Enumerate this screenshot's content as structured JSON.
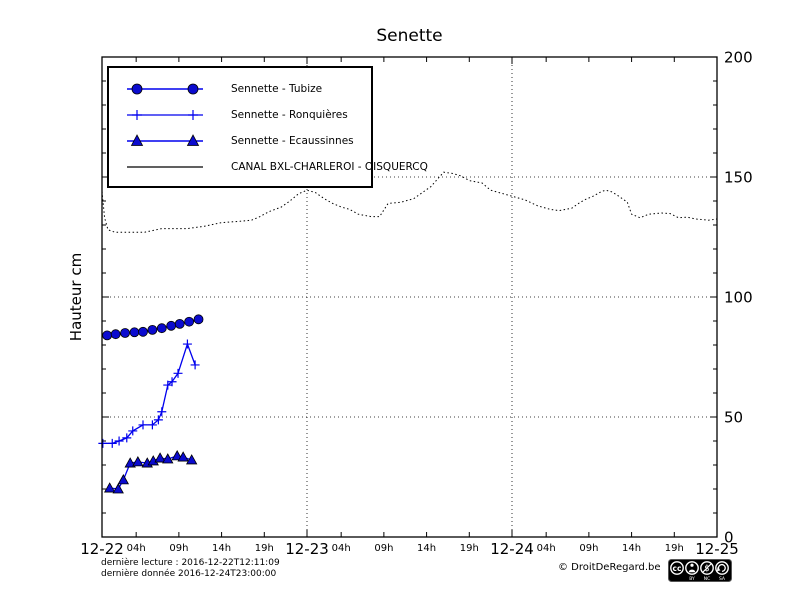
{
  "chart": {
    "title": "Senette",
    "ylabel": "Hauteur cm"
  },
  "legend": {
    "items": [
      {
        "label": "Sennette - Tubize",
        "marker": "circle"
      },
      {
        "label": "Sennette - Ronquières",
        "marker": "plus"
      },
      {
        "label": "Sennette - Ecaussinnes",
        "marker": "triangle"
      },
      {
        "label": "CANAL BXL-CHARLEROI  - OISQUERCQ",
        "marker": "line"
      }
    ]
  },
  "footer": {
    "line1": "dernière lecture : 2016-12-22T12:11:09",
    "line2": "dernière donnée  2016-12-24T23:00:00",
    "copyright": "© DroitDeRegard.be",
    "license_parts": [
      "BY",
      "NC",
      "SA"
    ]
  },
  "colors": {
    "line_blue": "#0000ee",
    "marker_fill": "#0b0bcf",
    "marker_edge": "#000000",
    "canal_black": "#000000",
    "grid": "#000000",
    "frame": "#000000"
  },
  "chart_data": {
    "type": "line",
    "title": "Senette",
    "xlabel": "",
    "ylabel": "Hauteur cm",
    "x_axis": {
      "unit": "hours from 2016-12-22 00:00",
      "range": [
        0,
        72
      ],
      "day_labels": [
        {
          "label": "12-22",
          "t": 0
        },
        {
          "label": "12-23",
          "t": 24
        },
        {
          "label": "12-24",
          "t": 48
        },
        {
          "label": "12-25",
          "t": 72
        }
      ],
      "hour_labels": [
        "04h",
        "09h",
        "14h",
        "19h"
      ],
      "hour_offsets": [
        4,
        9,
        14,
        19
      ],
      "hour_label_days": [
        0,
        24,
        48
      ],
      "vertical_gridlines_t": [
        24,
        48
      ]
    },
    "y_axis": {
      "range": [
        0,
        200
      ],
      "major_ticks": [
        0,
        50,
        100,
        150,
        200
      ],
      "minor_step": 10,
      "gridlines": [
        50,
        100,
        150
      ],
      "labels_side": "right"
    },
    "series": [
      {
        "name": "Sennette - Tubize",
        "marker": "circle",
        "points": [
          [
            0.6,
            84
          ],
          [
            1.6,
            84.5
          ],
          [
            2.7,
            85
          ],
          [
            3.8,
            85.3
          ],
          [
            4.8,
            85.5
          ],
          [
            5.9,
            86.3
          ],
          [
            7.0,
            87
          ],
          [
            8.1,
            88
          ],
          [
            9.1,
            88.8
          ],
          [
            10.2,
            89.7
          ],
          [
            11.3,
            90.7
          ]
        ]
      },
      {
        "name": "Sennette - Ronquières",
        "marker": "plus",
        "points": [
          [
            0.1,
            39
          ],
          [
            1.2,
            39
          ],
          [
            2.0,
            40
          ],
          [
            2.9,
            41.3
          ],
          [
            3.6,
            44.2
          ],
          [
            4.8,
            46.7
          ],
          [
            5.9,
            46.7
          ],
          [
            6.6,
            48.8
          ],
          [
            7.0,
            52.2
          ],
          [
            7.7,
            63.3
          ],
          [
            8.2,
            64.7
          ],
          [
            8.9,
            68.2
          ],
          [
            10.0,
            80.4
          ],
          [
            10.9,
            71.7
          ]
        ]
      },
      {
        "name": "Sennette - Ecaussinnes",
        "marker": "triangle",
        "points": [
          [
            0.9,
            20.4
          ],
          [
            1.9,
            20
          ],
          [
            2.5,
            23.8
          ],
          [
            3.3,
            30.8
          ],
          [
            4.2,
            31.3
          ],
          [
            5.3,
            30.8
          ],
          [
            6.0,
            31.7
          ],
          [
            6.8,
            32.9
          ],
          [
            7.7,
            32.5
          ],
          [
            8.8,
            33.8
          ],
          [
            9.5,
            33.3
          ],
          [
            10.5,
            32.1
          ]
        ]
      },
      {
        "name": "CANAL BXL-CHARLEROI  - OISQUERCQ",
        "marker": "none",
        "style": "dotted",
        "points": [
          [
            0,
            144
          ],
          [
            0.3,
            133
          ],
          [
            0.7,
            128
          ],
          [
            1.5,
            127
          ],
          [
            5,
            127
          ],
          [
            7,
            128.5
          ],
          [
            10,
            128.5
          ],
          [
            12,
            129.5
          ],
          [
            14,
            131
          ],
          [
            16,
            131.5
          ],
          [
            17.5,
            132
          ],
          [
            18.5,
            133.5
          ],
          [
            19.5,
            135.5
          ],
          [
            21,
            137.5
          ],
          [
            22,
            140
          ],
          [
            23,
            143
          ],
          [
            24,
            144.5
          ],
          [
            25,
            143.5
          ],
          [
            26,
            141
          ],
          [
            27,
            139
          ],
          [
            28,
            137.5
          ],
          [
            29,
            136.5
          ],
          [
            30,
            134.5
          ],
          [
            31.5,
            133.5
          ],
          [
            32.5,
            133.5
          ],
          [
            33.5,
            139
          ],
          [
            35,
            139.5
          ],
          [
            36.5,
            141
          ],
          [
            37.5,
            143.5
          ],
          [
            38.5,
            146
          ],
          [
            39.5,
            150
          ],
          [
            40,
            152
          ],
          [
            41,
            151.5
          ],
          [
            42,
            150.5
          ],
          [
            43,
            148.5
          ],
          [
            44.5,
            147.5
          ],
          [
            45.5,
            144.5
          ],
          [
            46.5,
            143.5
          ],
          [
            48,
            142
          ],
          [
            49.5,
            140.5
          ],
          [
            51,
            138
          ],
          [
            52.5,
            136.5
          ],
          [
            53.5,
            136
          ],
          [
            55,
            137
          ],
          [
            55.8,
            139
          ],
          [
            56.5,
            140.5
          ],
          [
            57.5,
            142
          ],
          [
            58.5,
            144
          ],
          [
            59,
            144.5
          ],
          [
            59.7,
            143.8
          ],
          [
            60.5,
            142
          ],
          [
            61.5,
            139.5
          ],
          [
            62,
            134.5
          ],
          [
            63,
            133
          ],
          [
            64,
            134.5
          ],
          [
            65.5,
            135
          ],
          [
            66.5,
            134.8
          ],
          [
            67.5,
            133
          ],
          [
            68.5,
            133.3
          ],
          [
            69.5,
            132.5
          ],
          [
            71,
            132
          ],
          [
            72,
            132.5
          ]
        ]
      }
    ]
  }
}
